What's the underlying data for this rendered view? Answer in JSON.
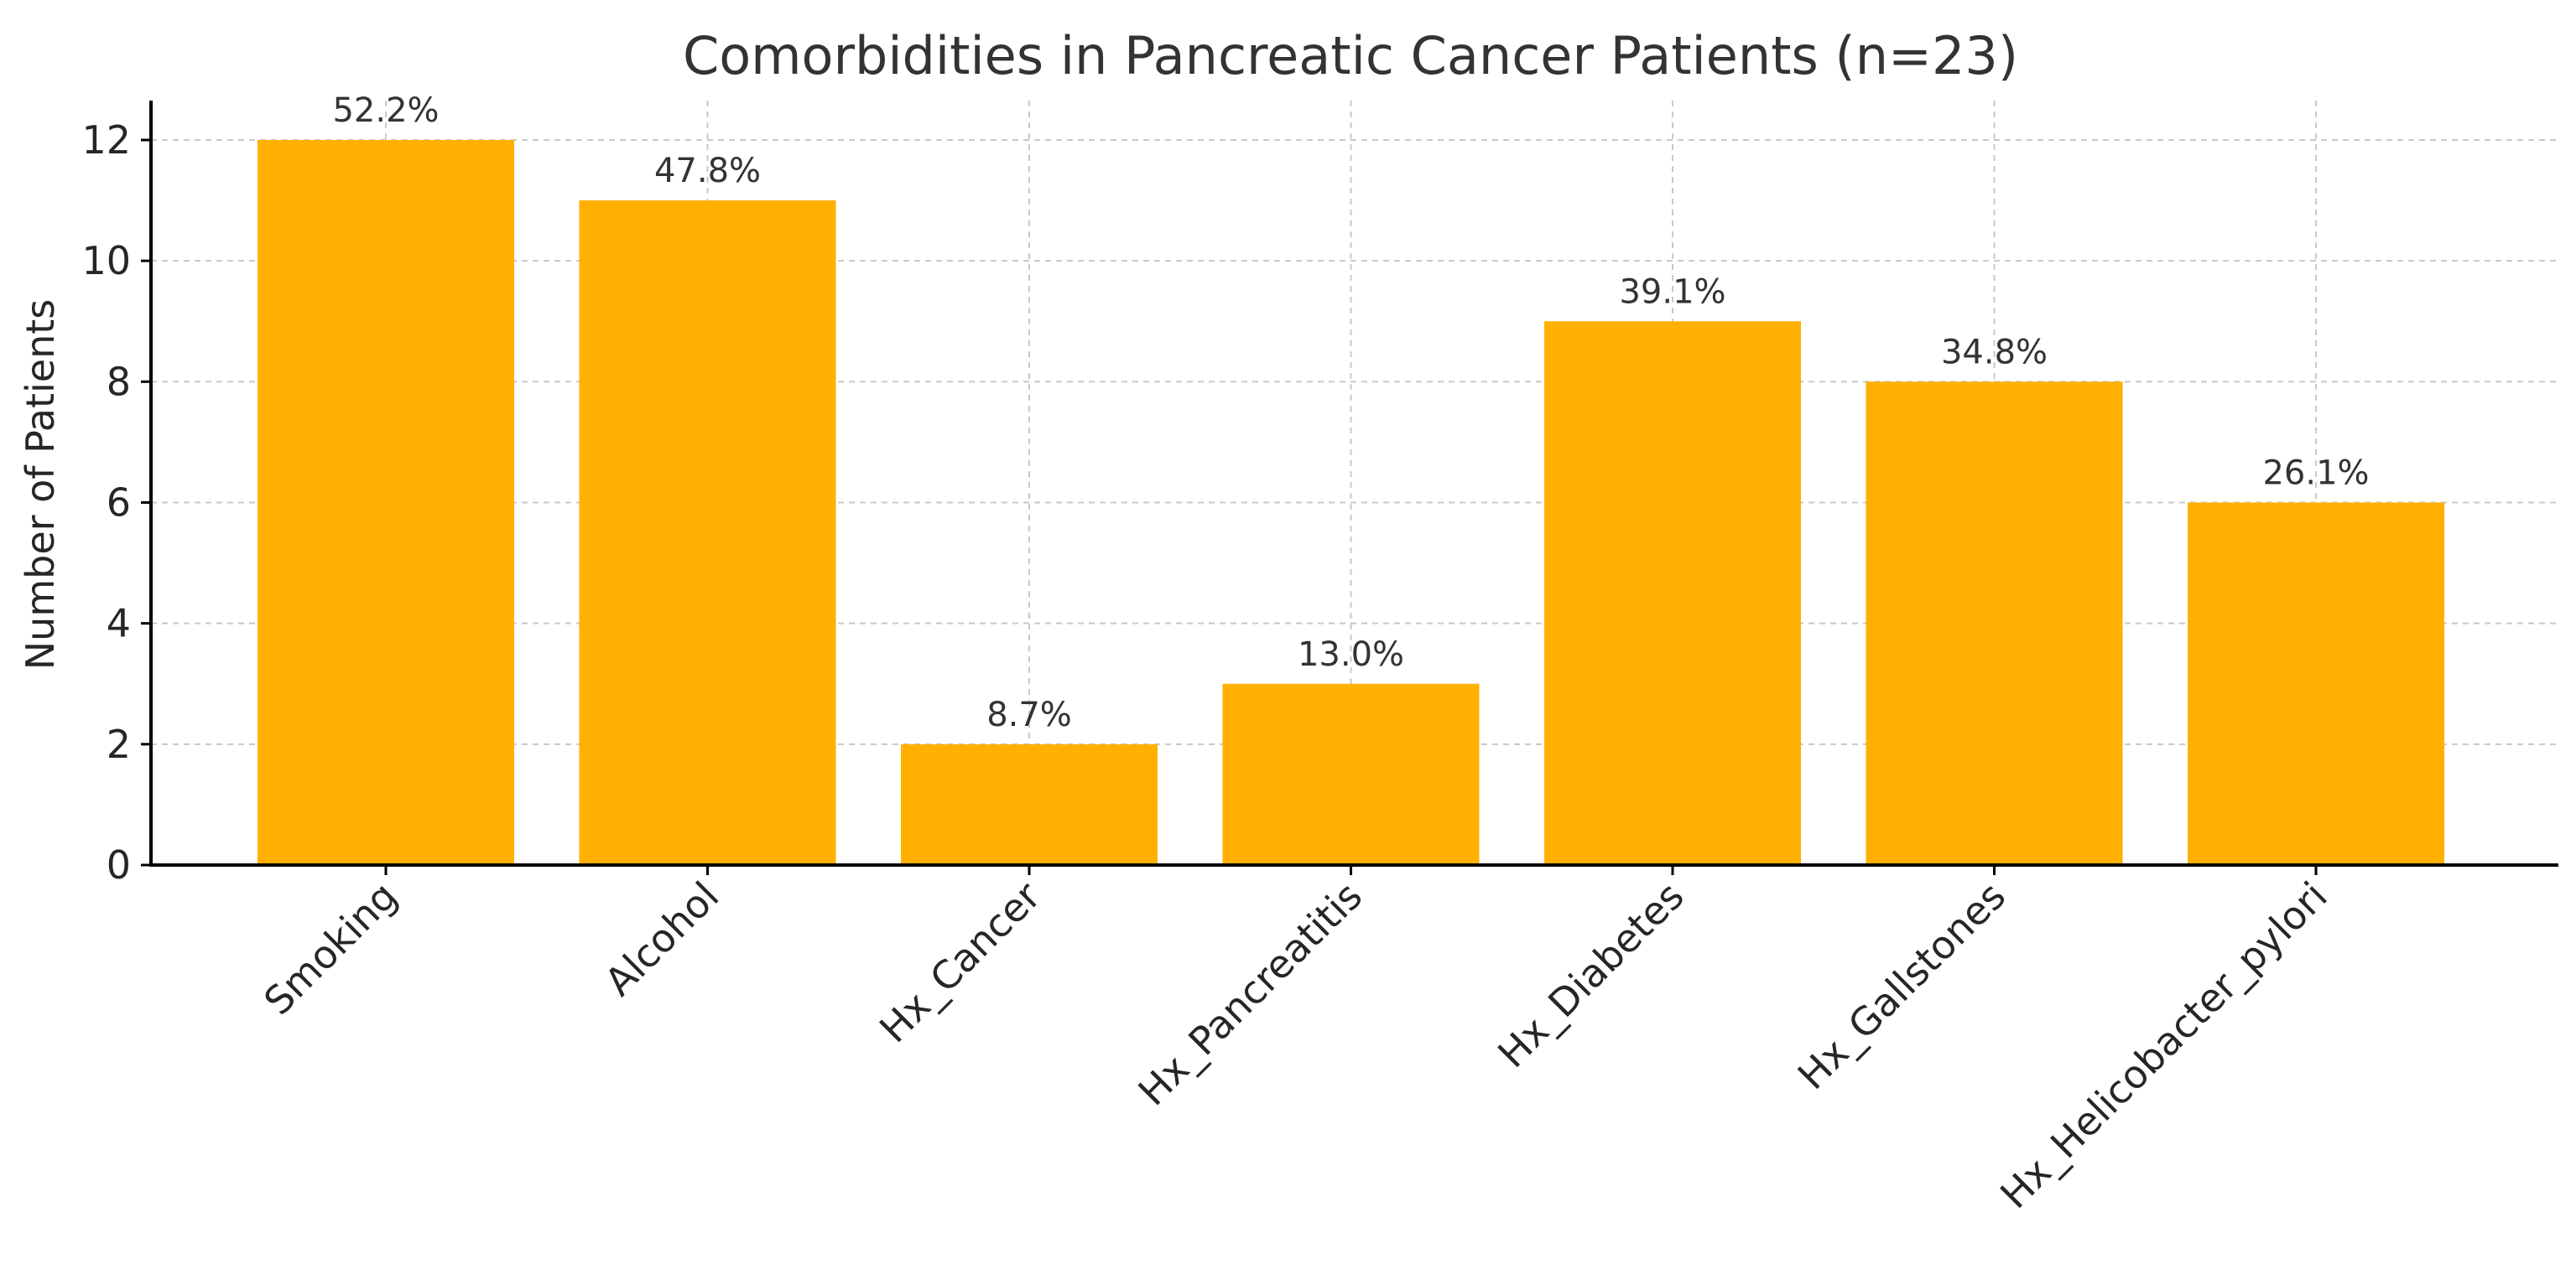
{
  "chart_data": {
    "type": "bar",
    "title": "Comorbidities in Pancreatic Cancer Patients (n=23)",
    "xlabel": "",
    "ylabel": "Number of Patients",
    "categories": [
      "Smoking",
      "Alcohol",
      "Hx_Cancer",
      "Hx_Pancreatitis",
      "Hx_Diabetes",
      "Hx_Gallstones",
      "Hx_Helicobacter_pylori"
    ],
    "values": [
      12,
      11,
      2,
      3,
      9,
      8,
      6
    ],
    "data_labels": [
      "52.2%",
      "47.8%",
      "8.7%",
      "13.0%",
      "39.1%",
      "34.8%",
      "26.1%"
    ],
    "yticks": [
      0,
      2,
      4,
      6,
      8,
      10,
      12
    ],
    "ylim": [
      0,
      12.6
    ],
    "grid": true,
    "bar_color": "#FFB000"
  }
}
